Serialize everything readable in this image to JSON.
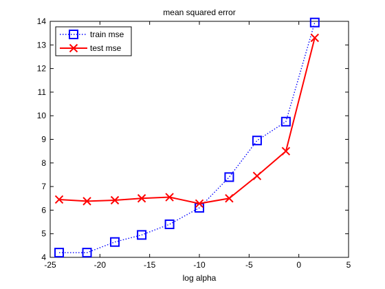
{
  "chart_data": {
    "type": "line",
    "title": "mean squared error",
    "xlabel": "log alpha",
    "ylabel": "",
    "xlim": [
      -25,
      5
    ],
    "ylim": [
      4,
      14
    ],
    "xticks": [
      -25,
      -20,
      -15,
      -10,
      -5,
      0,
      5
    ],
    "yticks": [
      4,
      5,
      6,
      7,
      8,
      9,
      10,
      11,
      12,
      13,
      14
    ],
    "grid": false,
    "legend": "top-left",
    "x": [
      -24.1,
      -21.3,
      -18.5,
      -15.8,
      -13.0,
      -10.0,
      -7.0,
      -4.2,
      -1.3,
      1.6
    ],
    "series": [
      {
        "name": "train mse",
        "color": "#0000ff",
        "marker": "square",
        "line_style": "dotted",
        "values": [
          4.2,
          4.2,
          4.65,
          4.95,
          5.4,
          6.1,
          7.4,
          8.95,
          9.75,
          13.95
        ]
      },
      {
        "name": "test mse",
        "color": "#ff0000",
        "marker": "x",
        "line_style": "solid",
        "values": [
          6.45,
          6.38,
          6.42,
          6.5,
          6.55,
          6.28,
          6.5,
          7.45,
          8.5,
          13.3
        ]
      }
    ]
  }
}
